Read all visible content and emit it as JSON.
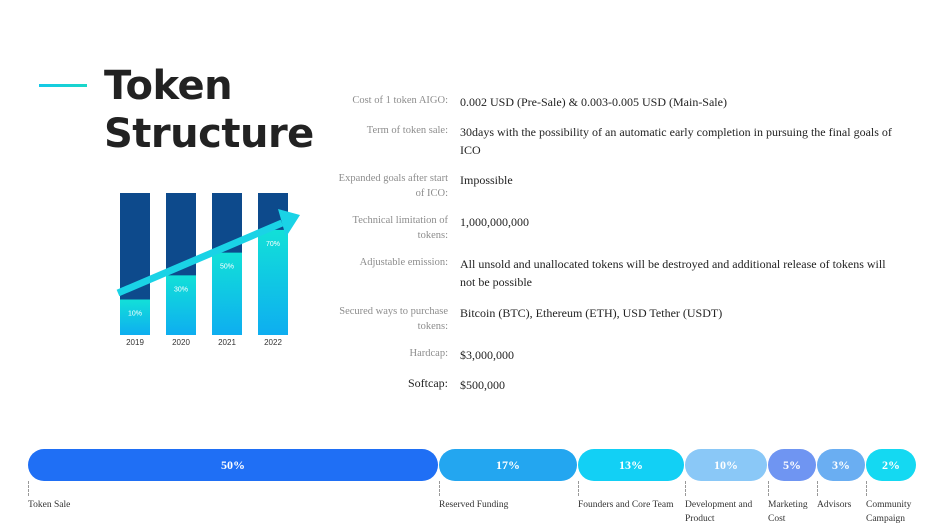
{
  "page": {
    "title_line1": "Token",
    "title_line2": "Structure"
  },
  "illustration": {
    "bars": [
      {
        "year": "2019",
        "percent_label": "10%",
        "fill": 0.25
      },
      {
        "year": "2020",
        "percent_label": "30%",
        "fill": 0.42
      },
      {
        "year": "2021",
        "percent_label": "50%",
        "fill": 0.58
      },
      {
        "year": "2022",
        "percent_label": "70%",
        "fill": 0.74
      }
    ],
    "colors": {
      "dark": "#0d4a8c",
      "light_top": "#12e0d8",
      "light_bottom": "#0eaef0",
      "arrow": "#1ad3e6"
    }
  },
  "token_info": [
    {
      "label": "Cost of 1 token AIGO:",
      "value": "0.002 USD (Pre-Sale) & 0.003-0.005 USD (Main-Sale)"
    },
    {
      "label": "Term of token sale:",
      "value": "30days with the possibility of an automatic early completion in pursuing the final goals of ICO"
    },
    {
      "label": "Expanded goals after start of ICO:",
      "value": "Impossible"
    },
    {
      "label": "Technical limitation of tokens:",
      "value": "1,000,000,000"
    },
    {
      "label": "Adjustable emission:",
      "value": "All unsold and unallocated tokens will be destroyed and additional release of tokens will not be possible"
    },
    {
      "label": "Secured ways to purchase tokens:",
      "value": "Bitcoin (BTC), Ethereum (ETH), USD Tether (USDT)"
    },
    {
      "label": "Hardcap:",
      "value": "$3,000,000"
    },
    {
      "label": "Softcap:",
      "value": "$500,000"
    }
  ],
  "distribution": [
    {
      "percent": "50%",
      "name": "Token Sale",
      "color": "#1f6ff5"
    },
    {
      "percent": "17%",
      "name": "Reserved Funding",
      "color": "#23a6f0"
    },
    {
      "percent": "13%",
      "name": "Founders and Core Team",
      "color": "#12d0f5"
    },
    {
      "percent": "10%",
      "name": "Development and Product",
      "color": "#8ac8f7"
    },
    {
      "percent": "5%",
      "name": "Marketing Cost",
      "color": "#6f95f2"
    },
    {
      "percent": "3%",
      "name": "Advisors",
      "color": "#6aaef2"
    },
    {
      "percent": "2%",
      "name": "Community Campaign",
      "color": "#14d9f2"
    }
  ]
}
